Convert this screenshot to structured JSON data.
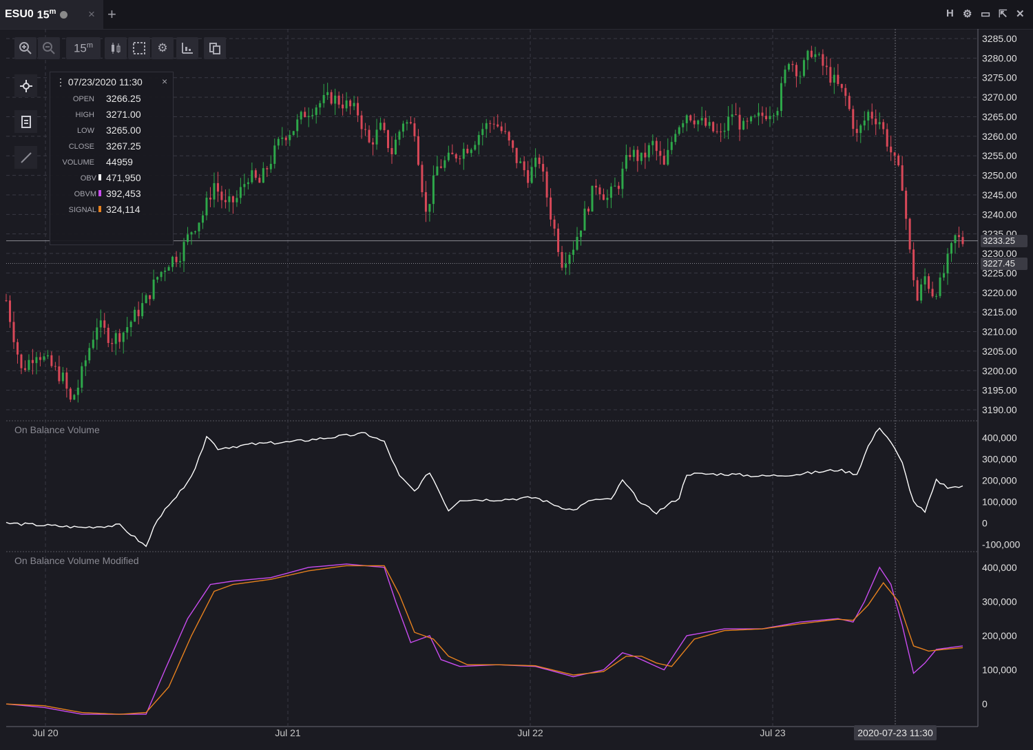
{
  "tab": {
    "symbol": "ESU0",
    "timeframe": "15",
    "timeframe_unit": "m",
    "close": "×",
    "add": "+"
  },
  "window_controls": {
    "h": "H",
    "gear": "⚙",
    "restore": "▭",
    "popout": "⇱",
    "close": "✕"
  },
  "toolbar": {
    "timeframe": "15",
    "timeframe_unit": "m"
  },
  "infobox": {
    "time": "07/23/2020 11:30",
    "close_btn": "×",
    "rows": [
      {
        "label": "OPEN",
        "value": "3266.25"
      },
      {
        "label": "HIGH",
        "value": "3271.00"
      },
      {
        "label": "LOW",
        "value": "3265.00"
      },
      {
        "label": "CLOSE",
        "value": "3267.25"
      },
      {
        "label": "VOLUME",
        "value": "44959"
      },
      {
        "label": "OBV",
        "value": "471,950",
        "color": "#ffffff"
      },
      {
        "label": "OBVM",
        "value": "392,453",
        "color": "#c94cf0"
      },
      {
        "label": "SIGNAL",
        "value": "324,114",
        "color": "#e8821e"
      }
    ]
  },
  "crosshair": {
    "price_label": "3233.25",
    "time_label": "2020-07-23 11:30"
  },
  "last_price_label": "3227.45",
  "panes": {
    "obv_title": "On Balance Volume",
    "obvm_title": "On Balance Volume Modified"
  },
  "colors": {
    "up": "#2ea84a",
    "down": "#d94858",
    "obv": "#ffffff",
    "obvm": "#c94cf0",
    "signal": "#e8821e",
    "grid": "#3a3a44",
    "bg": "#1b1b22"
  },
  "chart_data": [
    {
      "type": "candlestick",
      "title": "ESU0 15m",
      "x_ticks": [
        "Jul 20",
        "Jul 21",
        "Jul 22",
        "Jul 23"
      ],
      "y_ticks": [
        3190,
        3195,
        3200,
        3205,
        3210,
        3215,
        3220,
        3225,
        3230,
        3235,
        3240,
        3245,
        3250,
        3255,
        3260,
        3265,
        3270,
        3275,
        3280,
        3285
      ],
      "ylim": [
        3187.5,
        3287.5
      ],
      "path": [
        [
          0,
          3218
        ],
        [
          4,
          3200
        ],
        [
          8,
          3205
        ],
        [
          12,
          3201
        ],
        [
          15,
          3198
        ],
        [
          17,
          3192
        ],
        [
          19,
          3196
        ],
        [
          22,
          3206
        ],
        [
          24,
          3212
        ],
        [
          28,
          3208
        ],
        [
          31,
          3210
        ],
        [
          34,
          3214
        ],
        [
          37,
          3218
        ],
        [
          40,
          3224
        ],
        [
          43,
          3228
        ],
        [
          46,
          3230
        ],
        [
          49,
          3236
        ],
        [
          52,
          3240
        ],
        [
          55,
          3248
        ],
        [
          58,
          3242
        ],
        [
          61,
          3244
        ],
        [
          64,
          3250
        ],
        [
          67,
          3248
        ],
        [
          70,
          3254
        ],
        [
          73,
          3260
        ],
        [
          76,
          3262
        ],
        [
          79,
          3266
        ],
        [
          82,
          3268
        ],
        [
          86,
          3270
        ],
        [
          90,
          3268
        ],
        [
          93,
          3266
        ],
        [
          96,
          3258
        ],
        [
          99,
          3262
        ],
        [
          102,
          3256
        ],
        [
          105,
          3264
        ],
        [
          108,
          3262
        ],
        [
          111,
          3240
        ],
        [
          114,
          3252
        ],
        [
          117,
          3254
        ],
        [
          120,
          3256
        ],
        [
          123,
          3258
        ],
        [
          126,
          3262
        ],
        [
          129,
          3264
        ],
        [
          132,
          3260
        ],
        [
          135,
          3254
        ],
        [
          138,
          3250
        ],
        [
          141,
          3254
        ],
        [
          144,
          3240
        ],
        [
          147,
          3228
        ],
        [
          150,
          3232
        ],
        [
          153,
          3240
        ],
        [
          156,
          3248
        ],
        [
          159,
          3244
        ],
        [
          162,
          3248
        ],
        [
          165,
          3256
        ],
        [
          168,
          3254
        ],
        [
          171,
          3258
        ],
        [
          174,
          3252
        ],
        [
          177,
          3262
        ],
        [
          180,
          3266
        ],
        [
          183,
          3264
        ],
        [
          186,
          3262
        ],
        [
          189,
          3260
        ],
        [
          192,
          3266
        ],
        [
          195,
          3262
        ],
        [
          198,
          3264
        ],
        [
          201,
          3266
        ],
        [
          204,
          3268
        ],
        [
          207,
          3280
        ],
        [
          210,
          3276
        ],
        [
          213,
          3282
        ],
        [
          216,
          3278
        ],
        [
          219,
          3274
        ],
        [
          222,
          3270
        ],
        [
          225,
          3260
        ],
        [
          228,
          3266
        ],
        [
          231,
          3264
        ],
        [
          234,
          3256
        ],
        [
          237,
          3248
        ],
        [
          239,
          3230
        ],
        [
          241,
          3218
        ],
        [
          243,
          3224
        ],
        [
          245,
          3220
        ],
        [
          247,
          3222
        ],
        [
          249,
          3228
        ],
        [
          251,
          3234
        ],
        [
          253,
          3233
        ]
      ]
    },
    {
      "type": "line",
      "title": "On Balance Volume",
      "y_ticks": [
        -100000,
        0,
        100000,
        200000,
        300000,
        400000
      ],
      "ylim": [
        -130000,
        470000
      ],
      "series": [
        {
          "name": "OBV",
          "color": "#ffffff",
          "points": [
            [
              0,
              0
            ],
            [
              10,
              -10000
            ],
            [
              20,
              -20000
            ],
            [
              30,
              -10000
            ],
            [
              37,
              -110000
            ],
            [
              40,
              20000
            ],
            [
              45,
              120000
            ],
            [
              50,
              250000
            ],
            [
              53,
              410000
            ],
            [
              56,
              350000
            ],
            [
              65,
              370000
            ],
            [
              75,
              380000
            ],
            [
              85,
              400000
            ],
            [
              95,
              420000
            ],
            [
              100,
              380000
            ],
            [
              104,
              220000
            ],
            [
              108,
              150000
            ],
            [
              112,
              240000
            ],
            [
              117,
              60000
            ],
            [
              120,
              110000
            ],
            [
              130,
              110000
            ],
            [
              140,
              120000
            ],
            [
              146,
              80000
            ],
            [
              150,
              60000
            ],
            [
              155,
              110000
            ],
            [
              160,
              110000
            ],
            [
              163,
              200000
            ],
            [
              168,
              90000
            ],
            [
              172,
              50000
            ],
            [
              178,
              120000
            ],
            [
              180,
              230000
            ],
            [
              190,
              230000
            ],
            [
              200,
              220000
            ],
            [
              210,
              230000
            ],
            [
              220,
              250000
            ],
            [
              225,
              230000
            ],
            [
              228,
              360000
            ],
            [
              231,
              450000
            ],
            [
              234,
              380000
            ],
            [
              237,
              280000
            ],
            [
              240,
              100000
            ],
            [
              243,
              50000
            ],
            [
              246,
              200000
            ],
            [
              249,
              170000
            ],
            [
              253,
              170000
            ]
          ]
        }
      ]
    },
    {
      "type": "line",
      "title": "On Balance Volume Modified",
      "y_ticks": [
        0,
        100000,
        200000,
        300000,
        400000
      ],
      "ylim": [
        -60000,
        440000
      ],
      "series": [
        {
          "name": "OBVM",
          "color": "#c94cf0",
          "points": [
            [
              0,
              0
            ],
            [
              10,
              -10000
            ],
            [
              20,
              -30000
            ],
            [
              30,
              -30000
            ],
            [
              37,
              -30000
            ],
            [
              42,
              100000
            ],
            [
              48,
              250000
            ],
            [
              54,
              350000
            ],
            [
              60,
              360000
            ],
            [
              70,
              370000
            ],
            [
              80,
              400000
            ],
            [
              90,
              410000
            ],
            [
              100,
              400000
            ],
            [
              103,
              300000
            ],
            [
              107,
              180000
            ],
            [
              112,
              200000
            ],
            [
              115,
              130000
            ],
            [
              120,
              110000
            ],
            [
              130,
              115000
            ],
            [
              140,
              110000
            ],
            [
              150,
              80000
            ],
            [
              158,
              100000
            ],
            [
              163,
              150000
            ],
            [
              166,
              140000
            ],
            [
              170,
              120000
            ],
            [
              174,
              100000
            ],
            [
              180,
              200000
            ],
            [
              190,
              220000
            ],
            [
              200,
              220000
            ],
            [
              210,
              240000
            ],
            [
              220,
              250000
            ],
            [
              224,
              240000
            ],
            [
              227,
              300000
            ],
            [
              231,
              400000
            ],
            [
              234,
              350000
            ],
            [
              237,
              230000
            ],
            [
              240,
              90000
            ],
            [
              243,
              120000
            ],
            [
              246,
              160000
            ],
            [
              253,
              170000
            ]
          ]
        },
        {
          "name": "SIGNAL",
          "color": "#e8821e",
          "points": [
            [
              0,
              0
            ],
            [
              10,
              -5000
            ],
            [
              20,
              -25000
            ],
            [
              30,
              -30000
            ],
            [
              37,
              -25000
            ],
            [
              43,
              50000
            ],
            [
              49,
              200000
            ],
            [
              55,
              330000
            ],
            [
              60,
              350000
            ],
            [
              70,
              365000
            ],
            [
              80,
              390000
            ],
            [
              90,
              405000
            ],
            [
              100,
              405000
            ],
            [
              104,
              320000
            ],
            [
              108,
              210000
            ],
            [
              113,
              190000
            ],
            [
              117,
              140000
            ],
            [
              122,
              115000
            ],
            [
              130,
              115000
            ],
            [
              140,
              112000
            ],
            [
              150,
              85000
            ],
            [
              158,
              95000
            ],
            [
              164,
              140000
            ],
            [
              168,
              140000
            ],
            [
              172,
              120000
            ],
            [
              176,
              110000
            ],
            [
              182,
              190000
            ],
            [
              190,
              215000
            ],
            [
              200,
              220000
            ],
            [
              210,
              235000
            ],
            [
              220,
              248000
            ],
            [
              224,
              245000
            ],
            [
              228,
              290000
            ],
            [
              232,
              355000
            ],
            [
              236,
              300000
            ],
            [
              240,
              170000
            ],
            [
              244,
              155000
            ],
            [
              248,
              160000
            ],
            [
              253,
              165000
            ]
          ]
        }
      ]
    }
  ]
}
